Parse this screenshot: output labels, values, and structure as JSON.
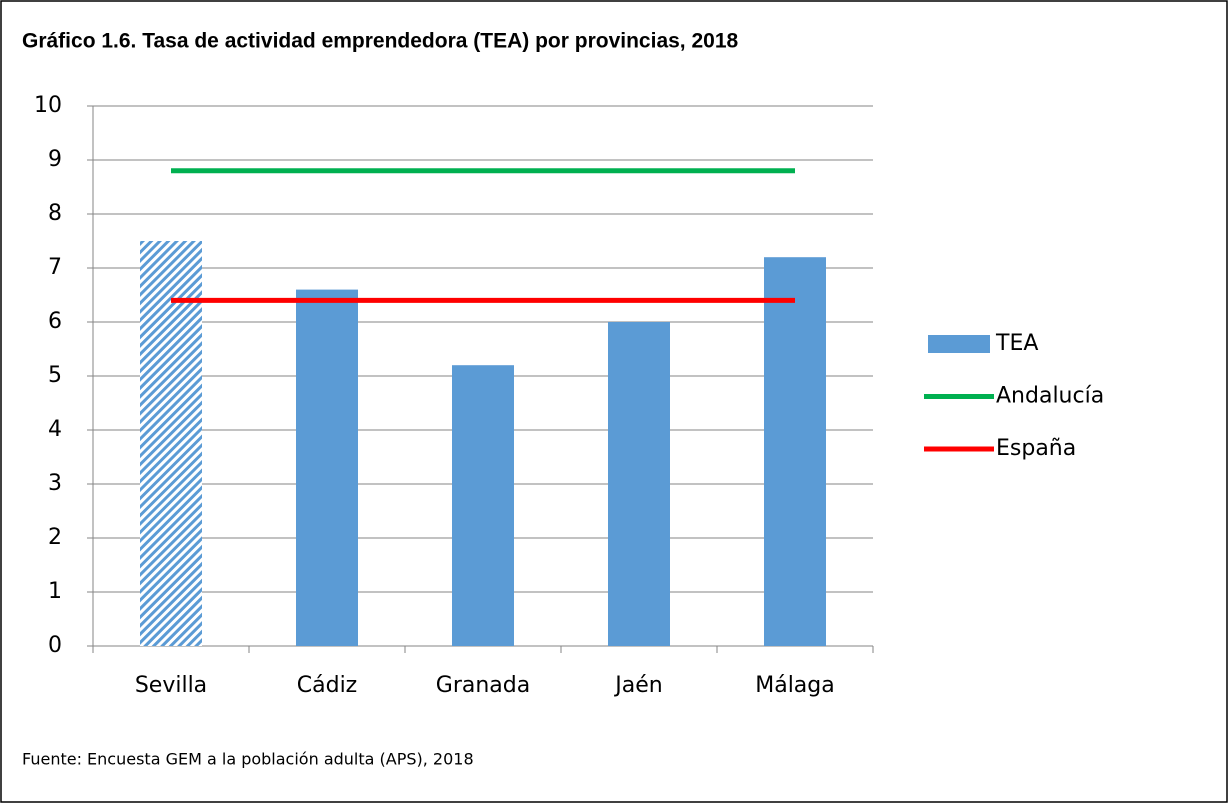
{
  "chart_data": {
    "type": "bar",
    "title": "Gráfico 1.6. Tasa de actividad emprendedora (TEA) por provincias, 2018",
    "source": "Fuente: Encuesta GEM a la población adulta (APS), 2018",
    "categories": [
      "Sevilla",
      "Cádiz",
      "Granada",
      "Jaén",
      "Málaga"
    ],
    "series": [
      {
        "name": "TEA",
        "type": "bar",
        "color": "#5b9bd5",
        "values": [
          7.5,
          6.6,
          5.2,
          6.0,
          7.2
        ],
        "patterns": [
          "hatch",
          "solid",
          "solid",
          "solid",
          "solid"
        ]
      },
      {
        "name": "Andalucía",
        "type": "line",
        "color": "#00b050",
        "values": [
          8.8,
          8.8,
          8.8,
          8.8,
          8.8
        ]
      },
      {
        "name": "España",
        "type": "line",
        "color": "#ff0000",
        "values": [
          6.4,
          6.4,
          6.4,
          6.4,
          6.4
        ]
      }
    ],
    "ylim": [
      0,
      10
    ],
    "yticks": [
      0,
      1,
      2,
      3,
      4,
      5,
      6,
      7,
      8,
      9,
      10
    ],
    "grid": true,
    "legend": "right"
  }
}
